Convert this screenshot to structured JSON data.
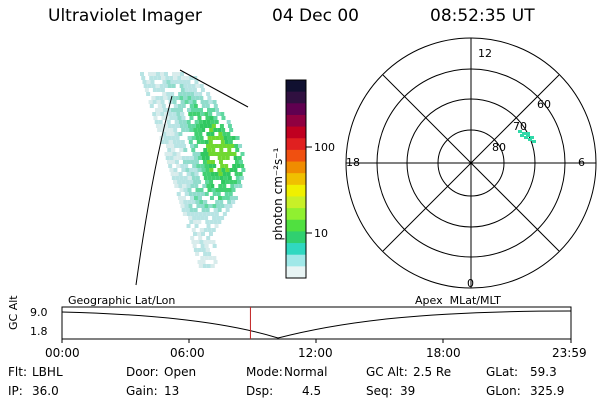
{
  "header": {
    "instrument": "Ultraviolet Imager",
    "date": "04 Dec 00",
    "time": "08:52:35 UT"
  },
  "colorbar": {
    "unit_label": "photon cm⁻²s⁻¹",
    "ticks": [
      "100",
      "10"
    ],
    "colors": [
      "#101030",
      "#301040",
      "#600050",
      "#900040",
      "#c00020",
      "#e02020",
      "#f05010",
      "#f08c00",
      "#f0c000",
      "#f0f000",
      "#c8f028",
      "#90f030",
      "#50e040",
      "#30d070",
      "#30d8c0",
      "#a0e8e8",
      "#e8f4f4"
    ]
  },
  "polar_plot": {
    "mlt_labels": {
      "top": "12",
      "left": "18",
      "right": "6",
      "bottom": "0"
    },
    "lat_labels": [
      "60",
      "70",
      "80"
    ],
    "emission_color": "#30d8a8"
  },
  "timeline": {
    "left_title": "Geographic Lat/Lon",
    "right_title": "Apex  MLat/MLT",
    "y_axis_label": "GC Alt",
    "y_ticks": [
      "9.0",
      "1.8"
    ],
    "x_ticks": [
      "00:00",
      "06:00",
      "12:00",
      "18:00",
      "23:59"
    ],
    "current_time_fraction": 0.3702,
    "marker_color": "#c02020"
  },
  "info": {
    "row1": [
      {
        "label": "Flt:",
        "value": "LBHL"
      },
      {
        "label": "Door:",
        "value": "Open"
      },
      {
        "label": "Mode:",
        "value": "Normal"
      },
      {
        "label": "GC Alt:",
        "value": "2.5 Re"
      },
      {
        "label": "GLat:",
        "value": "59.3"
      }
    ],
    "row2": [
      {
        "label": "IP:",
        "value": "36.0"
      },
      {
        "label": "Gain:",
        "value": "13"
      },
      {
        "label": "Dsp:",
        "value": "4.5"
      },
      {
        "label": "Seq:",
        "value": "39"
      },
      {
        "label": "GLon:",
        "value": "325.9"
      }
    ]
  }
}
